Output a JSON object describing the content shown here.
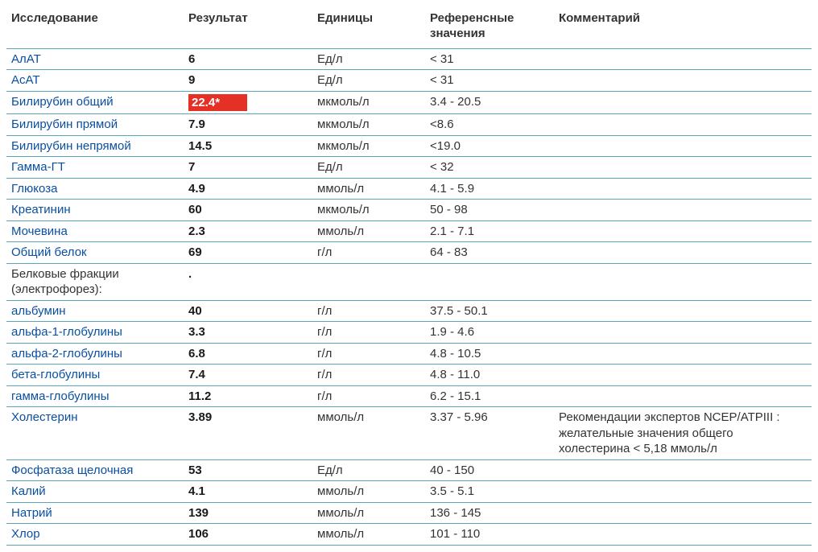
{
  "columns": {
    "test": "Исследование",
    "result": "Результат",
    "units": "Единицы",
    "reference": "Референсные значения",
    "comment": "Комментарий"
  },
  "border_color": "#5aa6b8",
  "link_color": "#0a4fa1",
  "flag_bg": "#e53026",
  "flag_fg": "#ffffff",
  "rows": [
    {
      "test": "АлАТ",
      "blue": true,
      "result": "6",
      "flag": false,
      "units": "Ед/л",
      "ref": "< 31",
      "comment": ""
    },
    {
      "test": "АсАТ",
      "blue": true,
      "result": "9",
      "flag": false,
      "units": "Ед/л",
      "ref": "< 31",
      "comment": ""
    },
    {
      "test": "Билирубин общий",
      "blue": true,
      "result": "22.4*",
      "flag": true,
      "units": "мкмоль/л",
      "ref": "3.4 - 20.5",
      "comment": ""
    },
    {
      "test": "Билирубин прямой",
      "blue": true,
      "result": "7.9",
      "flag": false,
      "units": "мкмоль/л",
      "ref": "<8.6",
      "comment": ""
    },
    {
      "test": "Билирубин непрямой",
      "blue": true,
      "result": "14.5",
      "flag": false,
      "units": "мкмоль/л",
      "ref": "<19.0",
      "comment": ""
    },
    {
      "test": "Гамма-ГТ",
      "blue": true,
      "result": "7",
      "flag": false,
      "units": "Ед/л",
      "ref": "< 32",
      "comment": ""
    },
    {
      "test": "Глюкоза",
      "blue": true,
      "result": "4.9",
      "flag": false,
      "units": "ммоль/л",
      "ref": "4.1 - 5.9",
      "comment": ""
    },
    {
      "test": "Креатинин",
      "blue": true,
      "result": "60",
      "flag": false,
      "units": "мкмоль/л",
      "ref": "50 - 98",
      "comment": ""
    },
    {
      "test": "Мочевина",
      "blue": true,
      "result": "2.3",
      "flag": false,
      "units": "ммоль/л",
      "ref": "2.1 - 7.1",
      "comment": ""
    },
    {
      "test": "Общий белок",
      "blue": true,
      "result": "69",
      "flag": false,
      "units": "г/л",
      "ref": "64 - 83",
      "comment": ""
    },
    {
      "test": "Белковые фракции (электрофорез):",
      "blue": false,
      "result": ".",
      "flag": false,
      "units": "",
      "ref": "",
      "comment": ""
    },
    {
      "test": "альбумин",
      "blue": true,
      "result": "40",
      "flag": false,
      "units": "г/л",
      "ref": "37.5 - 50.1",
      "comment": ""
    },
    {
      "test": "альфа-1-глобулины",
      "blue": true,
      "result": "3.3",
      "flag": false,
      "units": "г/л",
      "ref": "1.9 - 4.6",
      "comment": ""
    },
    {
      "test": "альфа-2-глобулины",
      "blue": true,
      "result": "6.8",
      "flag": false,
      "units": "г/л",
      "ref": "4.8 - 10.5",
      "comment": ""
    },
    {
      "test": "бета-глобулины",
      "blue": true,
      "result": "7.4",
      "flag": false,
      "units": "г/л",
      "ref": "4.8 - 11.0",
      "comment": ""
    },
    {
      "test": "гамма-глобулины",
      "blue": true,
      "result": "11.2",
      "flag": false,
      "units": "г/л",
      "ref": "6.2 - 15.1",
      "comment": ""
    },
    {
      "test": "Холестерин",
      "blue": true,
      "result": "3.89",
      "flag": false,
      "units": "ммоль/л",
      "ref": "3.37 - 5.96",
      "comment": "Рекомендации экспертов NCEP/ATPIII : желательные значения общего холестерина < 5,18 ммоль/л"
    },
    {
      "test": "Фосфатаза щелочная",
      "blue": true,
      "result": "53",
      "flag": false,
      "units": "Ед/л",
      "ref": "40 - 150",
      "comment": ""
    },
    {
      "test": "Калий",
      "blue": true,
      "result": "4.1",
      "flag": false,
      "units": "ммоль/л",
      "ref": "3.5 - 5.1",
      "comment": ""
    },
    {
      "test": "Натрий",
      "blue": true,
      "result": "139",
      "flag": false,
      "units": "ммоль/л",
      "ref": "136 - 145",
      "comment": ""
    },
    {
      "test": "Хлор",
      "blue": true,
      "result": "106",
      "flag": false,
      "units": "ммоль/л",
      "ref": "101 - 110",
      "comment": ""
    }
  ]
}
